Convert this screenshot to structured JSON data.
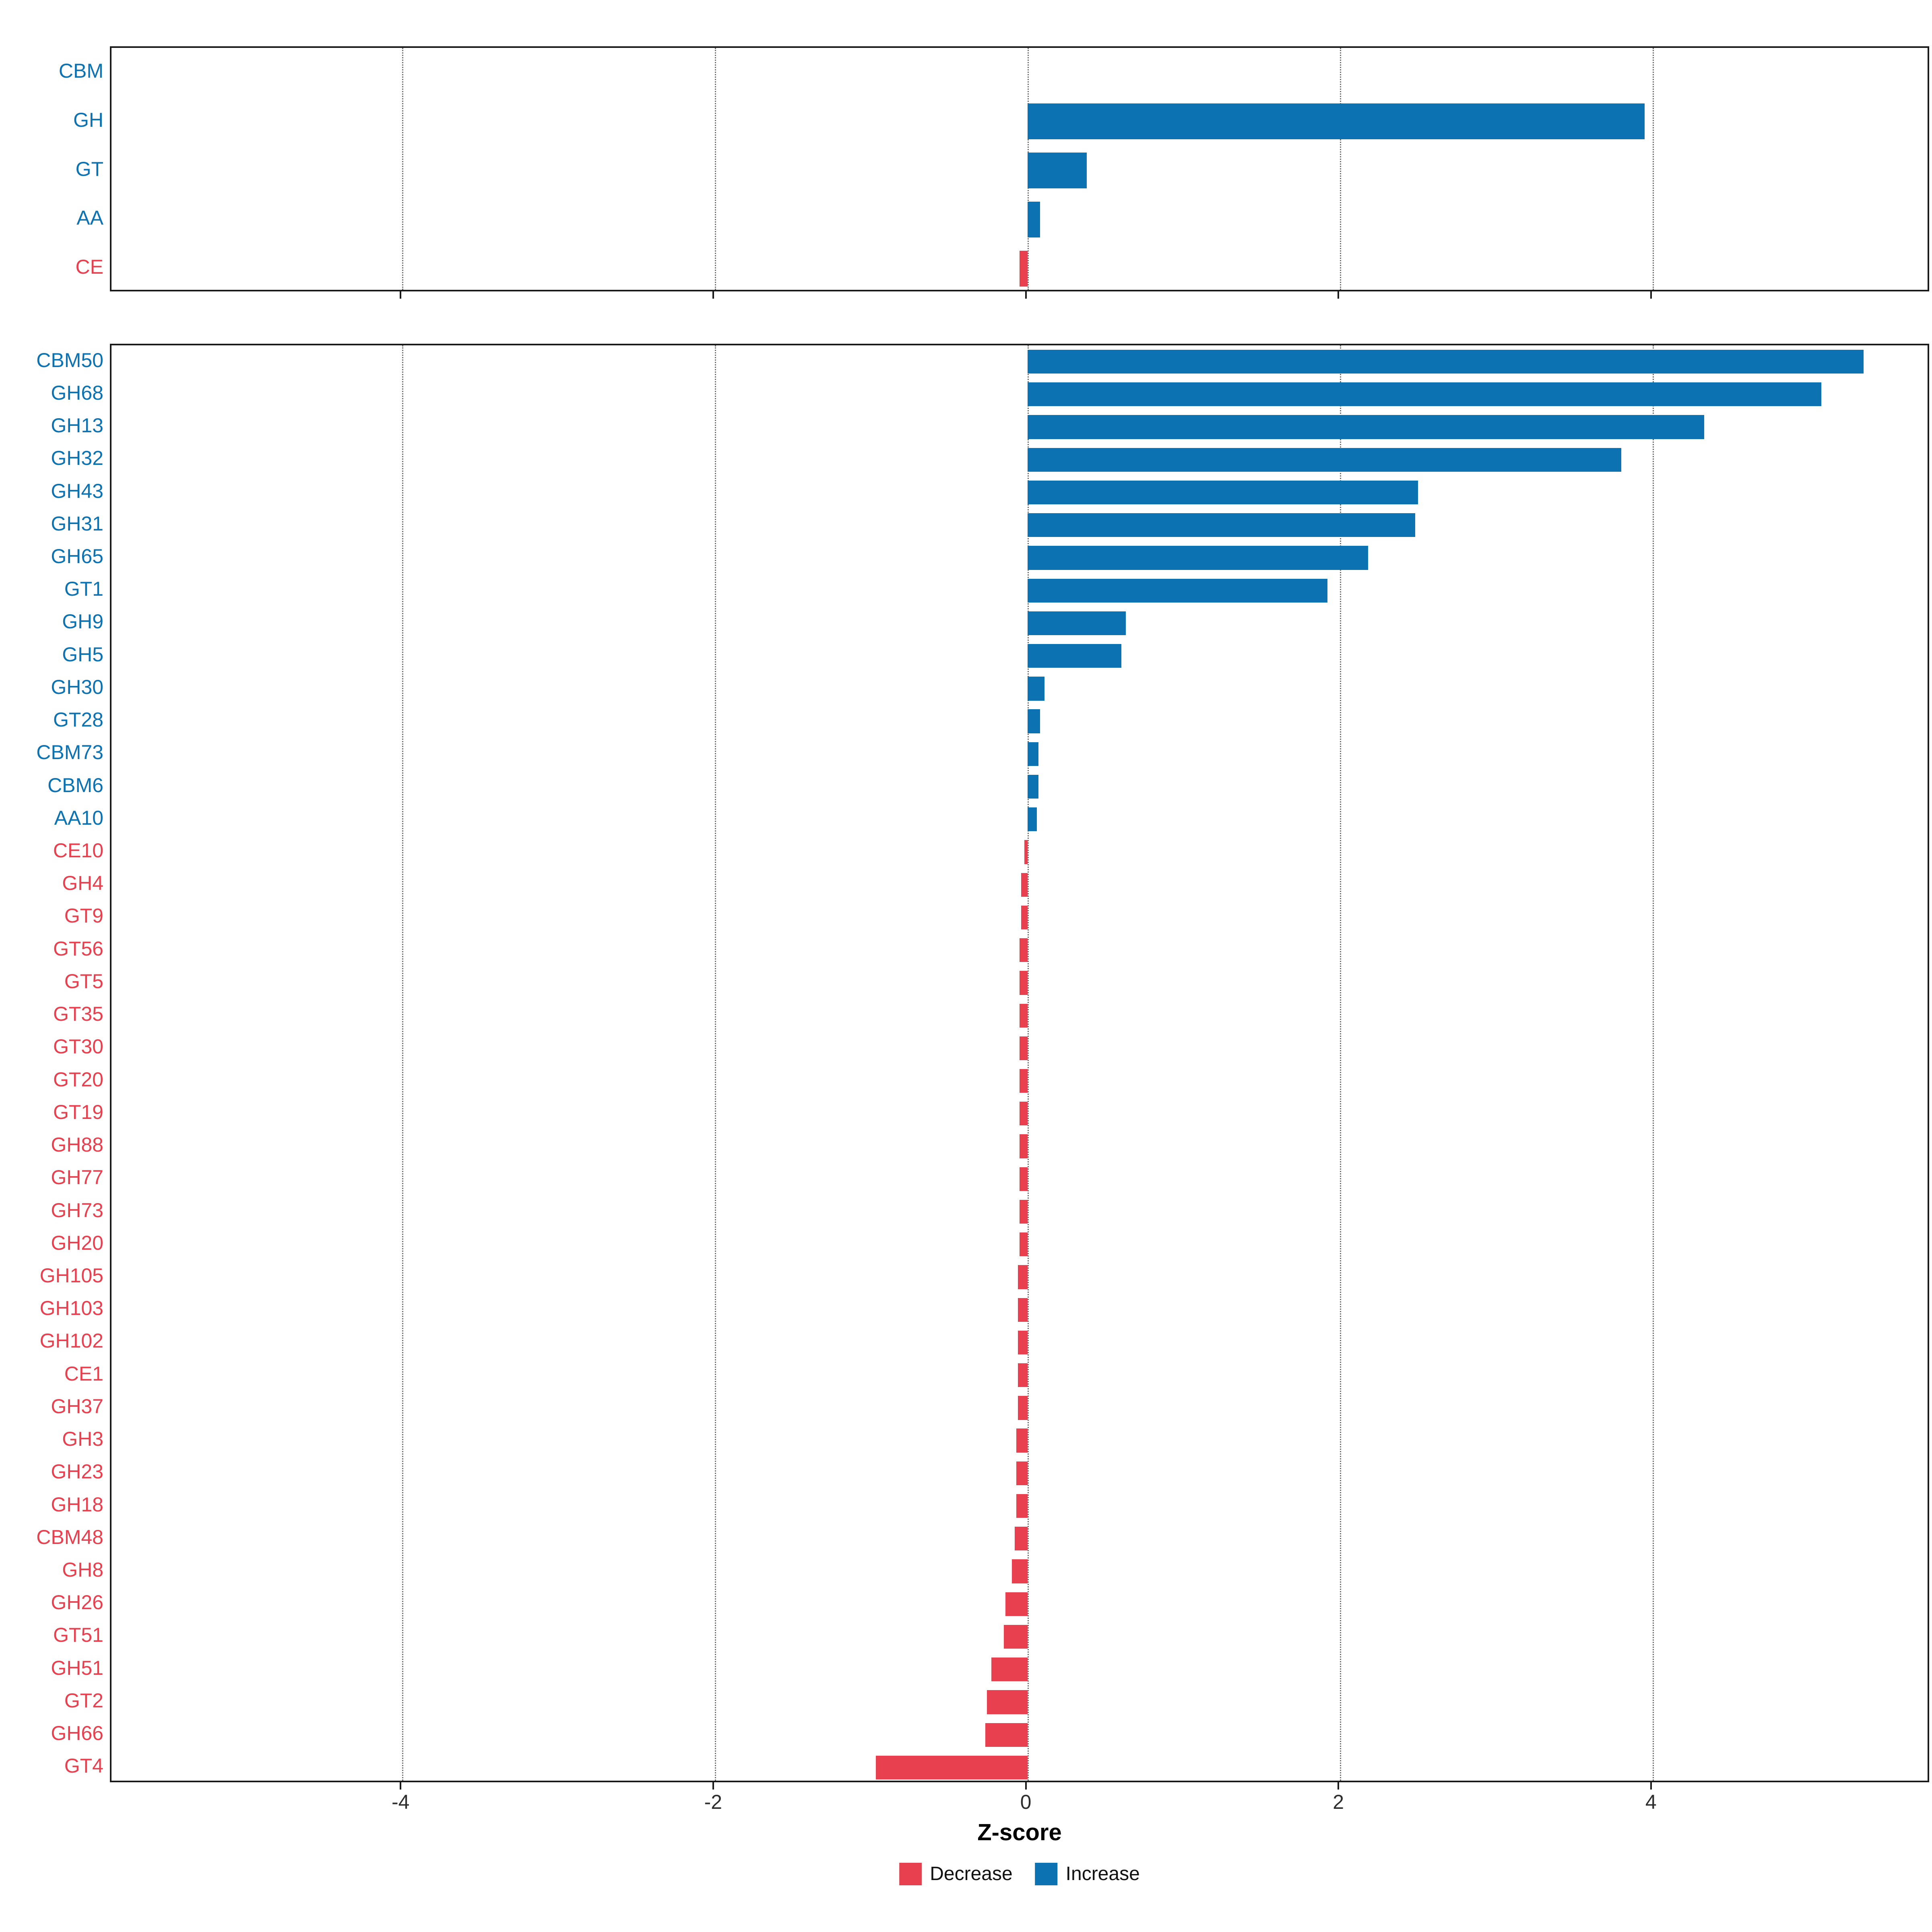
{
  "xlabel": "Z-score",
  "legend": {
    "position": "bottom",
    "items": [
      {
        "label": "Decrease",
        "color": "#e8404f"
      },
      {
        "label": "Increase",
        "color": "#0d72b2"
      }
    ]
  },
  "axis": {
    "xmin": -5.86,
    "xmax": 5.78,
    "ticks": [
      -4,
      -2,
      0,
      2,
      4
    ],
    "tick_labels": [
      "-4",
      "-2",
      "0",
      "2",
      "4"
    ],
    "gridlines": [
      -4,
      -2,
      0,
      2,
      4
    ],
    "grid_style": "dotted-vertical"
  },
  "colors": {
    "increase": "#0d72b2",
    "decrease": "#e8404f"
  },
  "chart_data": [
    {
      "id": "cazyme-class-panel",
      "type": "bar",
      "orientation": "horizontal",
      "title": "",
      "xlabel": "Z-score",
      "xlim": [
        -5.86,
        5.78
      ],
      "categories": [
        "CBM",
        "GH",
        "GT",
        "AA",
        "CE"
      ],
      "values": [
        0.0,
        3.95,
        0.38,
        0.08,
        -0.05
      ]
    },
    {
      "id": "cazyme-family-panel",
      "type": "bar",
      "orientation": "horizontal",
      "title": "",
      "xlabel": "Z-score",
      "xlim": [
        -5.86,
        5.78
      ],
      "categories": [
        "CBM50",
        "GH68",
        "GH13",
        "GH32",
        "GH43",
        "GH31",
        "GH65",
        "GT1",
        "GH9",
        "GH5",
        "GH30",
        "GT28",
        "CBM73",
        "CBM6",
        "AA10",
        "CE10",
        "GH4",
        "GT9",
        "GT56",
        "GT5",
        "GT35",
        "GT30",
        "GT20",
        "GT19",
        "GH88",
        "GH77",
        "GH73",
        "GH20",
        "GH105",
        "GH103",
        "GH102",
        "CE1",
        "GH37",
        "GH3",
        "GH23",
        "GH18",
        "CBM48",
        "GH8",
        "GH26",
        "GT51",
        "GH51",
        "GT2",
        "GH66",
        "GT4"
      ],
      "values": [
        5.35,
        5.08,
        4.33,
        3.8,
        2.5,
        2.48,
        2.18,
        1.92,
        0.63,
        0.6,
        0.11,
        0.08,
        0.07,
        0.07,
        0.06,
        -0.02,
        -0.04,
        -0.04,
        -0.05,
        -0.05,
        -0.05,
        -0.05,
        -0.05,
        -0.05,
        -0.05,
        -0.05,
        -0.05,
        -0.05,
        -0.06,
        -0.06,
        -0.06,
        -0.06,
        -0.06,
        -0.07,
        -0.07,
        -0.07,
        -0.08,
        -0.1,
        -0.14,
        -0.15,
        -0.23,
        -0.26,
        -0.27,
        -0.97
      ]
    }
  ]
}
